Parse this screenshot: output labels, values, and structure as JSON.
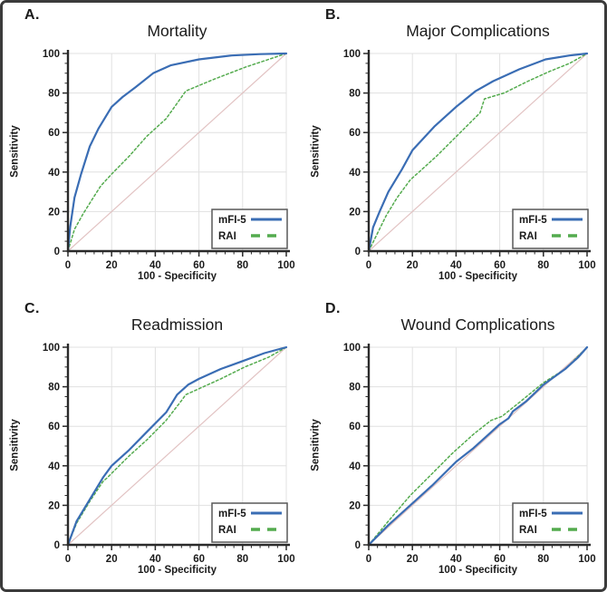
{
  "figure": {
    "kind": "roc-curve-comparison-figure",
    "layout": "2x2-panel-grid",
    "background": "#ffffff",
    "frame_color": "#3b3b3b"
  },
  "styles": {
    "mfi5_color": "#3a6db4",
    "rai_color": "#54ab4e",
    "reference_color": "#e2c3c3",
    "grid_color": "#e0e0e0",
    "axis_color": "#2a2a2a",
    "text_color": "#1a1a1a",
    "legend_border": "#595959",
    "legend_background": "#ffffff"
  },
  "chart_data": [
    {
      "type": "line",
      "panel_label": "A.",
      "title": "Mortality",
      "xlabel": "100 - Specificity",
      "ylabel": "Sensitivity",
      "xlim": [
        0,
        100
      ],
      "ylim": [
        0,
        100
      ],
      "xticks": [
        0,
        20,
        40,
        60,
        80,
        100
      ],
      "yticks": [
        0,
        20,
        40,
        60,
        80,
        100
      ],
      "x_minor_step": 4,
      "y_minor_step": 5,
      "grid": true,
      "legend_position": "bottom-right",
      "reference_line": {
        "name": "chance-diagonal",
        "from": [
          0,
          0
        ],
        "to": [
          100,
          100
        ]
      },
      "series": [
        {
          "name": "mFI-5",
          "style": "solid",
          "points": [
            [
              0,
              0
            ],
            [
              1,
              12
            ],
            [
              3,
              27
            ],
            [
              6,
              39
            ],
            [
              10,
              53
            ],
            [
              14,
              62
            ],
            [
              20,
              73
            ],
            [
              25,
              78
            ],
            [
              31,
              83
            ],
            [
              39,
              90
            ],
            [
              47,
              94
            ],
            [
              60,
              97
            ],
            [
              75,
              99
            ],
            [
              88,
              99.7
            ],
            [
              100,
              100
            ]
          ]
        },
        {
          "name": "RAI",
          "style": "dashed",
          "points": [
            [
              0,
              0
            ],
            [
              3,
              11
            ],
            [
              7,
              19
            ],
            [
              11,
              26
            ],
            [
              15,
              33
            ],
            [
              20,
              39
            ],
            [
              28,
              48
            ],
            [
              36,
              58
            ],
            [
              45,
              67
            ],
            [
              54,
              81
            ],
            [
              67,
              87
            ],
            [
              81,
              93
            ],
            [
              100,
              100
            ]
          ]
        }
      ]
    },
    {
      "type": "line",
      "panel_label": "B.",
      "title": "Major Complications",
      "xlabel": "100 - Specificity",
      "ylabel": "Sensitivity",
      "xlim": [
        0,
        100
      ],
      "ylim": [
        0,
        100
      ],
      "xticks": [
        0,
        20,
        40,
        60,
        80,
        100
      ],
      "yticks": [
        0,
        20,
        40,
        60,
        80,
        100
      ],
      "x_minor_step": 4,
      "y_minor_step": 5,
      "grid": true,
      "legend_position": "bottom-right",
      "reference_line": {
        "name": "chance-diagonal",
        "from": [
          0,
          0
        ],
        "to": [
          100,
          100
        ]
      },
      "series": [
        {
          "name": "mFI-5",
          "style": "solid",
          "points": [
            [
              0,
              0
            ],
            [
              2,
              12
            ],
            [
              5,
              20
            ],
            [
              9,
              30
            ],
            [
              15,
              41
            ],
            [
              20,
              51
            ],
            [
              30,
              63
            ],
            [
              40,
              73
            ],
            [
              49,
              81
            ],
            [
              57,
              86
            ],
            [
              69,
              92
            ],
            [
              81,
              97
            ],
            [
              92,
              99
            ],
            [
              100,
              100
            ]
          ]
        },
        {
          "name": "RAI",
          "style": "dashed",
          "points": [
            [
              0,
              0
            ],
            [
              4,
              9
            ],
            [
              8,
              18
            ],
            [
              13,
              27
            ],
            [
              19,
              36
            ],
            [
              31,
              48
            ],
            [
              41,
              59
            ],
            [
              51,
              70
            ],
            [
              53,
              77
            ],
            [
              62,
              80
            ],
            [
              73,
              86
            ],
            [
              83,
              91
            ],
            [
              92,
              95
            ],
            [
              100,
              100
            ]
          ]
        }
      ]
    },
    {
      "type": "line",
      "panel_label": "C.",
      "title": "Readmission",
      "xlabel": "100 - Specificity",
      "ylabel": "Sensitivity",
      "xlim": [
        0,
        100
      ],
      "ylim": [
        0,
        100
      ],
      "xticks": [
        0,
        20,
        40,
        60,
        80,
        100
      ],
      "yticks": [
        0,
        20,
        40,
        60,
        80,
        100
      ],
      "x_minor_step": 4,
      "y_minor_step": 5,
      "grid": true,
      "legend_position": "bottom-right",
      "reference_line": {
        "name": "chance-diagonal",
        "from": [
          0,
          0
        ],
        "to": [
          100,
          100
        ]
      },
      "series": [
        {
          "name": "mFI-5",
          "style": "solid",
          "points": [
            [
              0,
              0
            ],
            [
              4,
              12
            ],
            [
              10,
              23
            ],
            [
              16,
              34
            ],
            [
              20,
              40
            ],
            [
              28,
              48
            ],
            [
              36,
              57
            ],
            [
              45,
              67
            ],
            [
              50,
              76
            ],
            [
              55,
              81
            ],
            [
              60,
              84
            ],
            [
              70,
              89
            ],
            [
              80,
              93
            ],
            [
              90,
              97
            ],
            [
              100,
              100
            ]
          ]
        },
        {
          "name": "RAI",
          "style": "dashed",
          "points": [
            [
              0,
              0
            ],
            [
              4,
              11
            ],
            [
              10,
              22
            ],
            [
              16,
              32
            ],
            [
              18,
              34
            ],
            [
              28,
              45
            ],
            [
              36,
              53
            ],
            [
              45,
              63
            ],
            [
              52,
              73
            ],
            [
              54,
              76
            ],
            [
              60,
              79
            ],
            [
              70,
              84
            ],
            [
              81,
              90
            ],
            [
              92,
              95
            ],
            [
              100,
              100
            ]
          ]
        }
      ]
    },
    {
      "type": "line",
      "panel_label": "D.",
      "title": "Wound Complications",
      "xlabel": "100 - Specificity",
      "ylabel": "Sensitivity",
      "xlim": [
        0,
        100
      ],
      "ylim": [
        0,
        100
      ],
      "xticks": [
        0,
        20,
        40,
        60,
        80,
        100
      ],
      "yticks": [
        0,
        20,
        40,
        60,
        80,
        100
      ],
      "x_minor_step": 4,
      "y_minor_step": 5,
      "grid": true,
      "legend_position": "bottom-right",
      "reference_line": {
        "name": "chance-diagonal",
        "from": [
          0,
          0
        ],
        "to": [
          100,
          100
        ]
      },
      "series": [
        {
          "name": "mFI-5",
          "style": "solid",
          "points": [
            [
              0,
              0
            ],
            [
              9,
              10
            ],
            [
              19,
              20
            ],
            [
              29,
              30
            ],
            [
              40,
              42
            ],
            [
              48,
              49
            ],
            [
              55,
              56
            ],
            [
              60,
              61
            ],
            [
              64,
              64
            ],
            [
              66,
              67.5
            ],
            [
              72,
              72.5
            ],
            [
              80,
              81
            ],
            [
              90,
              89
            ],
            [
              96,
              95
            ],
            [
              100,
              100
            ]
          ]
        },
        {
          "name": "RAI",
          "style": "dashed",
          "points": [
            [
              0,
              0
            ],
            [
              9,
              12
            ],
            [
              19,
              25
            ],
            [
              29,
              36
            ],
            [
              38,
              46
            ],
            [
              48,
              56
            ],
            [
              56,
              63
            ],
            [
              61,
              65
            ],
            [
              70,
              73
            ],
            [
              80,
              82
            ],
            [
              90,
              89
            ],
            [
              100,
              100
            ]
          ]
        }
      ]
    }
  ]
}
